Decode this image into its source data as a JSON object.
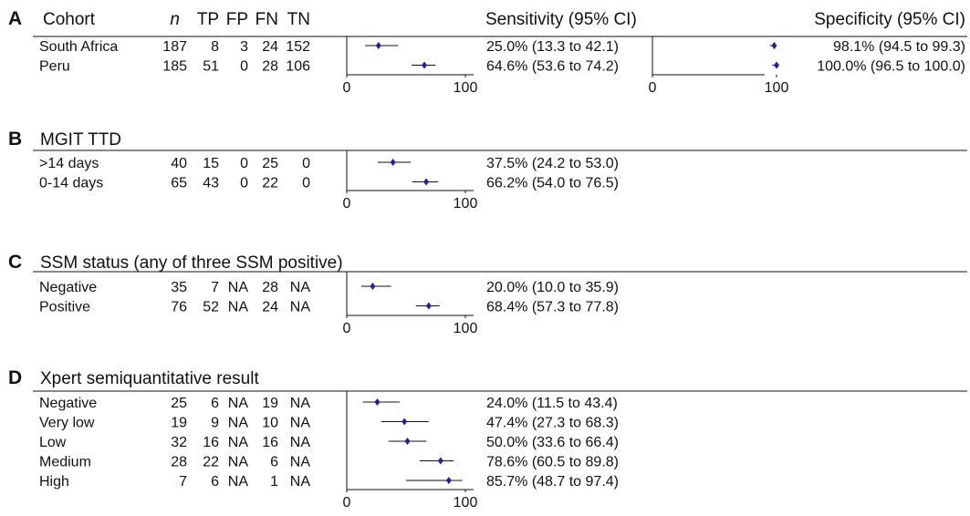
{
  "columns": [
    "n",
    "TP",
    "FP",
    "FN",
    "TN"
  ],
  "sensitivity_header": "Sensitivity (95% CI)",
  "specificity_header": "Specificity (95% CI)",
  "panels": [
    {
      "letter": "A",
      "title": "Cohort",
      "xlim": [
        0,
        100
      ],
      "xticks": [
        0,
        100
      ],
      "rows": [
        {
          "cells": [
            "South Africa",
            187,
            8,
            3,
            24,
            152
          ],
          "sens": {
            "value": 25.0,
            "low": 13.3,
            "high": 42.1,
            "label": "25.0% (13.3 to 42.1)"
          },
          "spec": {
            "value": 98.1,
            "low": 94.5,
            "high": 99.3,
            "label": "98.1% (94.5 to 99.3)"
          }
        },
        {
          "cells": [
            "Peru",
            185,
            51,
            0,
            28,
            106
          ],
          "sens": {
            "value": 64.6,
            "low": 53.6,
            "high": 74.2,
            "label": "64.6% (53.6 to 74.2)"
          },
          "spec": {
            "value": 100.0,
            "low": 96.5,
            "high": 100.0,
            "label": "100.0% (96.5 to 100.0)"
          }
        }
      ]
    },
    {
      "letter": "B",
      "title": "MGIT TTD",
      "xlim": [
        0,
        100
      ],
      "xticks": [
        0,
        100
      ],
      "rows": [
        {
          "cells": [
            ">14 days",
            40,
            15,
            0,
            25,
            0
          ],
          "sens": {
            "value": 37.5,
            "low": 24.2,
            "high": 53.0,
            "label": "37.5% (24.2 to 53.0)"
          }
        },
        {
          "cells": [
            "0-14 days",
            65,
            43,
            0,
            22,
            0
          ],
          "sens": {
            "value": 66.2,
            "low": 54.0,
            "high": 76.5,
            "label": "66.2% (54.0 to 76.5)"
          }
        }
      ]
    },
    {
      "letter": "C",
      "title": "SSM status (any of three SSM positive)",
      "xlim": [
        0,
        100
      ],
      "xticks": [
        0,
        100
      ],
      "rows": [
        {
          "cells": [
            "Negative",
            35,
            7,
            "NA",
            28,
            "NA"
          ],
          "sens": {
            "value": 20.0,
            "low": 10.0,
            "high": 35.9,
            "label": "20.0% (10.0 to 35.9)"
          }
        },
        {
          "cells": [
            "Positive",
            76,
            52,
            "NA",
            24,
            "NA"
          ],
          "sens": {
            "value": 68.4,
            "low": 57.3,
            "high": 77.8,
            "label": "68.4% (57.3 to 77.8)"
          }
        }
      ]
    },
    {
      "letter": "D",
      "title": "Xpert semiquantitative result",
      "xlim": [
        0,
        100
      ],
      "xticks": [
        0,
        100
      ],
      "rows": [
        {
          "cells": [
            "Negative",
            25,
            6,
            "NA",
            19,
            "NA"
          ],
          "sens": {
            "value": 24.0,
            "low": 11.5,
            "high": 43.4,
            "label": "24.0% (11.5 to 43.4)"
          }
        },
        {
          "cells": [
            "Very low",
            19,
            9,
            "NA",
            10,
            "NA"
          ],
          "sens": {
            "value": 47.4,
            "low": 27.3,
            "high": 68.3,
            "label": "47.4% (27.3 to 68.3)"
          }
        },
        {
          "cells": [
            "Low",
            32,
            16,
            "NA",
            16,
            "NA"
          ],
          "sens": {
            "value": 50.0,
            "low": 33.6,
            "high": 66.4,
            "label": "50.0% (33.6 to 66.4)"
          }
        },
        {
          "cells": [
            "Medium",
            28,
            22,
            "NA",
            6,
            "NA"
          ],
          "sens": {
            "value": 78.6,
            "low": 60.5,
            "high": 89.8,
            "label": "78.6% (60.5 to 89.8)"
          }
        },
        {
          "cells": [
            "High",
            7,
            6,
            "NA",
            1,
            "NA"
          ],
          "sens": {
            "value": 85.7,
            "low": 48.7,
            "high": 97.4,
            "label": "85.7% (48.7 to 97.4)"
          }
        }
      ]
    }
  ]
}
